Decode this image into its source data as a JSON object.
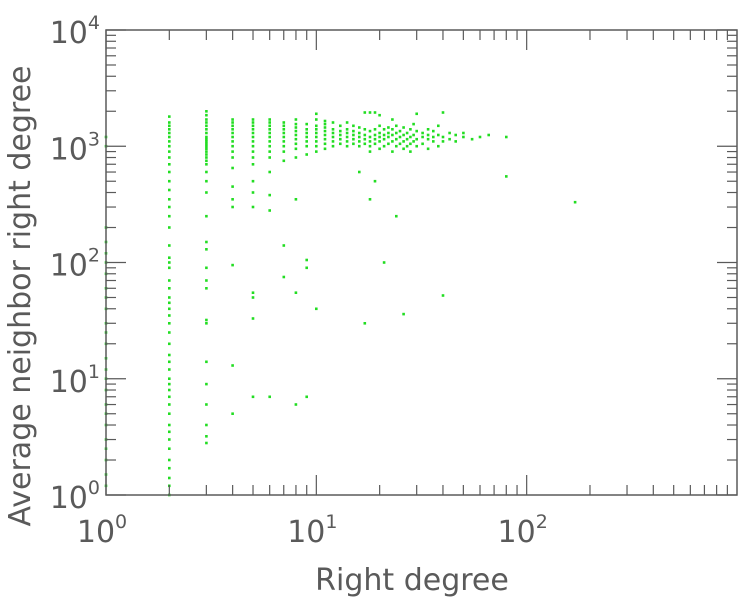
{
  "chart_data": {
    "type": "scatter",
    "xlabel": "Right degree",
    "ylabel": "Average neighbor right degree",
    "xscale": "log",
    "yscale": "log",
    "xlim": [
      1,
      1000
    ],
    "ylim": [
      1,
      10000
    ],
    "x_ticks": [
      {
        "base": "10",
        "exp": "0",
        "value": 1
      },
      {
        "base": "10",
        "exp": "1",
        "value": 10
      },
      {
        "base": "10",
        "exp": "2",
        "value": 100
      }
    ],
    "y_ticks": [
      {
        "base": "10",
        "exp": "0",
        "value": 1
      },
      {
        "base": "10",
        "exp": "1",
        "value": 10
      },
      {
        "base": "10",
        "exp": "2",
        "value": 100
      },
      {
        "base": "10",
        "exp": "3",
        "value": 1000
      },
      {
        "base": "10",
        "exp": "4",
        "value": 10000
      }
    ],
    "grid": false,
    "marker_color": "#22dd22",
    "axis_color": "#5a5a5a",
    "series": [
      {
        "values": [
          [
            1,
            1.2
          ],
          [
            1,
            1.5
          ],
          [
            1,
            2
          ],
          [
            1,
            2.5
          ],
          [
            1,
            3
          ],
          [
            1,
            4
          ],
          [
            1,
            5
          ],
          [
            1,
            6
          ],
          [
            1,
            8
          ],
          [
            1,
            10
          ],
          [
            1,
            12
          ],
          [
            1,
            15
          ],
          [
            1,
            20
          ],
          [
            1,
            25
          ],
          [
            1,
            30
          ],
          [
            1,
            40
          ],
          [
            1,
            50
          ],
          [
            1,
            60
          ],
          [
            1,
            80
          ],
          [
            1,
            100
          ],
          [
            1,
            120
          ],
          [
            1,
            150
          ],
          [
            1,
            200
          ],
          [
            1,
            1000
          ],
          [
            1,
            1200
          ],
          [
            2,
            1.0
          ],
          [
            2,
            1.2
          ],
          [
            2,
            1.4
          ],
          [
            2,
            1.7
          ],
          [
            2,
            2
          ],
          [
            2,
            2.5
          ],
          [
            2,
            3
          ],
          [
            2,
            3.5
          ],
          [
            2,
            4
          ],
          [
            2,
            5
          ],
          [
            2,
            6
          ],
          [
            2,
            7
          ],
          [
            2,
            8
          ],
          [
            2,
            9
          ],
          [
            2,
            10
          ],
          [
            2,
            12
          ],
          [
            2,
            14
          ],
          [
            2,
            16
          ],
          [
            2,
            20
          ],
          [
            2,
            25
          ],
          [
            2,
            30
          ],
          [
            2,
            35
          ],
          [
            2,
            40
          ],
          [
            2,
            45
          ],
          [
            2,
            50
          ],
          [
            2,
            60
          ],
          [
            2,
            70
          ],
          [
            2,
            90
          ],
          [
            2,
            100
          ],
          [
            2,
            110
          ],
          [
            2,
            140
          ],
          [
            2,
            200
          ],
          [
            2,
            250
          ],
          [
            2,
            300
          ],
          [
            2,
            350
          ],
          [
            2,
            420
          ],
          [
            2,
            500
          ],
          [
            2,
            600
          ],
          [
            2,
            700
          ],
          [
            2,
            800
          ],
          [
            2,
            900
          ],
          [
            2,
            1000
          ],
          [
            2,
            1100
          ],
          [
            2,
            1200
          ],
          [
            2,
            1300
          ],
          [
            2,
            1400
          ],
          [
            2,
            1500
          ],
          [
            2,
            1600
          ],
          [
            2,
            1800
          ],
          [
            3,
            2.8
          ],
          [
            3,
            3.2
          ],
          [
            3,
            4
          ],
          [
            3,
            6
          ],
          [
            3,
            9
          ],
          [
            3,
            14
          ],
          [
            3,
            30
          ],
          [
            3,
            32
          ],
          [
            3,
            60
          ],
          [
            3,
            70
          ],
          [
            3,
            90
          ],
          [
            3,
            130
          ],
          [
            3,
            150
          ],
          [
            3,
            250
          ],
          [
            3,
            400
          ],
          [
            3,
            500
          ],
          [
            3,
            600
          ],
          [
            3,
            700
          ],
          [
            3,
            750
          ],
          [
            3,
            800
          ],
          [
            3,
            850
          ],
          [
            3,
            900
          ],
          [
            3,
            950
          ],
          [
            3,
            1000
          ],
          [
            3,
            1050
          ],
          [
            3,
            1100
          ],
          [
            3,
            1150
          ],
          [
            3,
            1200
          ],
          [
            3,
            1300
          ],
          [
            3,
            1400
          ],
          [
            3,
            1500
          ],
          [
            3,
            1600
          ],
          [
            3,
            1700
          ],
          [
            3,
            1850
          ],
          [
            3,
            2000
          ],
          [
            4,
            5
          ],
          [
            4,
            13
          ],
          [
            4,
            95
          ],
          [
            4,
            300
          ],
          [
            4,
            350
          ],
          [
            4,
            450
          ],
          [
            4,
            650
          ],
          [
            4,
            800
          ],
          [
            4,
            900
          ],
          [
            4,
            1000
          ],
          [
            4,
            1100
          ],
          [
            4,
            1200
          ],
          [
            4,
            1300
          ],
          [
            4,
            1400
          ],
          [
            4,
            1500
          ],
          [
            4,
            1600
          ],
          [
            4,
            1700
          ],
          [
            5,
            7
          ],
          [
            5,
            33
          ],
          [
            5,
            50
          ],
          [
            5,
            55
          ],
          [
            5,
            300
          ],
          [
            5,
            400
          ],
          [
            5,
            500
          ],
          [
            5,
            700
          ],
          [
            5,
            800
          ],
          [
            5,
            900
          ],
          [
            5,
            1000
          ],
          [
            5,
            1100
          ],
          [
            5,
            1200
          ],
          [
            5,
            1300
          ],
          [
            5,
            1400
          ],
          [
            5,
            1500
          ],
          [
            5,
            1600
          ],
          [
            5,
            1700
          ],
          [
            6,
            7
          ],
          [
            6,
            280
          ],
          [
            6,
            380
          ],
          [
            6,
            600
          ],
          [
            6,
            800
          ],
          [
            6,
            900
          ],
          [
            6,
            1000
          ],
          [
            6,
            1100
          ],
          [
            6,
            1200
          ],
          [
            6,
            1300
          ],
          [
            6,
            1400
          ],
          [
            6,
            1500
          ],
          [
            6,
            1600
          ],
          [
            6,
            1700
          ],
          [
            7,
            75
          ],
          [
            7,
            140
          ],
          [
            7,
            750
          ],
          [
            7,
            900
          ],
          [
            7,
            1000
          ],
          [
            7,
            1100
          ],
          [
            7,
            1200
          ],
          [
            7,
            1300
          ],
          [
            7,
            1400
          ],
          [
            7,
            1500
          ],
          [
            7,
            1600
          ],
          [
            8,
            6
          ],
          [
            8,
            55
          ],
          [
            8,
            350
          ],
          [
            8,
            800
          ],
          [
            8,
            950
          ],
          [
            8,
            1050
          ],
          [
            8,
            1150
          ],
          [
            8,
            1250
          ],
          [
            8,
            1350
          ],
          [
            8,
            1450
          ],
          [
            8,
            1550
          ],
          [
            8,
            1700
          ],
          [
            9,
            7
          ],
          [
            9,
            90
          ],
          [
            9,
            105
          ],
          [
            9,
            850
          ],
          [
            9,
            1000
          ],
          [
            9,
            1100
          ],
          [
            9,
            1200
          ],
          [
            9,
            1300
          ],
          [
            9,
            1400
          ],
          [
            9,
            1550
          ],
          [
            10,
            40
          ],
          [
            10,
            900
          ],
          [
            10,
            1000
          ],
          [
            10,
            1100
          ],
          [
            10,
            1200
          ],
          [
            10,
            1300
          ],
          [
            10,
            1400
          ],
          [
            10,
            1500
          ],
          [
            10,
            1700
          ],
          [
            10,
            1900
          ],
          [
            11,
            950
          ],
          [
            11,
            1050
          ],
          [
            11,
            1150
          ],
          [
            11,
            1250
          ],
          [
            11,
            1350
          ],
          [
            11,
            1450
          ],
          [
            11,
            1550
          ],
          [
            11,
            1650
          ],
          [
            12,
            1000
          ],
          [
            12,
            1100
          ],
          [
            12,
            1200
          ],
          [
            12,
            1300
          ],
          [
            12,
            1400
          ],
          [
            12,
            1600
          ],
          [
            13,
            1050
          ],
          [
            13,
            1150
          ],
          [
            13,
            1250
          ],
          [
            13,
            1350
          ],
          [
            13,
            1500
          ],
          [
            14,
            1000
          ],
          [
            14,
            1100
          ],
          [
            14,
            1200
          ],
          [
            14,
            1300
          ],
          [
            14,
            1400
          ],
          [
            14,
            1600
          ],
          [
            15,
            1050
          ],
          [
            15,
            1150
          ],
          [
            15,
            1250
          ],
          [
            15,
            1350
          ],
          [
            15,
            1500
          ],
          [
            16,
            600
          ],
          [
            16,
            1000
          ],
          [
            16,
            1100
          ],
          [
            16,
            1200
          ],
          [
            16,
            1300
          ],
          [
            16,
            1450
          ],
          [
            17,
            30
          ],
          [
            17,
            1050
          ],
          [
            17,
            1150
          ],
          [
            17,
            1250
          ],
          [
            17,
            1400
          ],
          [
            17,
            1950
          ],
          [
            18,
            350
          ],
          [
            18,
            900
          ],
          [
            18,
            1000
          ],
          [
            18,
            1100
          ],
          [
            18,
            1200
          ],
          [
            18,
            1350
          ],
          [
            18,
            1950
          ],
          [
            19,
            500
          ],
          [
            19,
            1050
          ],
          [
            19,
            1150
          ],
          [
            19,
            1250
          ],
          [
            19,
            1400
          ],
          [
            19,
            1950
          ],
          [
            20,
            950
          ],
          [
            20,
            1100
          ],
          [
            20,
            1200
          ],
          [
            20,
            1300
          ],
          [
            20,
            1500
          ],
          [
            20,
            1850
          ],
          [
            21,
            100
          ],
          [
            21,
            1000
          ],
          [
            21,
            1150
          ],
          [
            21,
            1250
          ],
          [
            21,
            1400
          ],
          [
            22,
            1050
          ],
          [
            22,
            1200
          ],
          [
            22,
            1300
          ],
          [
            22,
            1450
          ],
          [
            23,
            900
          ],
          [
            23,
            1100
          ],
          [
            23,
            1250
          ],
          [
            23,
            1400
          ],
          [
            23,
            1700
          ],
          [
            24,
            250
          ],
          [
            24,
            1000
          ],
          [
            24,
            1150
          ],
          [
            24,
            1300
          ],
          [
            24,
            1500
          ],
          [
            25,
            1050
          ],
          [
            25,
            1200
          ],
          [
            25,
            1350
          ],
          [
            26,
            36
          ],
          [
            26,
            950
          ],
          [
            26,
            1100
          ],
          [
            26,
            1250
          ],
          [
            26,
            1450
          ],
          [
            27,
            1000
          ],
          [
            27,
            1150
          ],
          [
            27,
            1300
          ],
          [
            28,
            900
          ],
          [
            28,
            1050
          ],
          [
            28,
            1200
          ],
          [
            28,
            1400
          ],
          [
            29,
            1100
          ],
          [
            29,
            1250
          ],
          [
            29,
            1550
          ],
          [
            30,
            1000
          ],
          [
            30,
            1150
          ],
          [
            30,
            1350
          ],
          [
            30,
            1900
          ],
          [
            32,
            1050
          ],
          [
            32,
            1200
          ],
          [
            32,
            1300
          ],
          [
            34,
            950
          ],
          [
            34,
            1150
          ],
          [
            34,
            1250
          ],
          [
            34,
            1400
          ],
          [
            36,
            1100
          ],
          [
            36,
            1200
          ],
          [
            36,
            1350
          ],
          [
            38,
            1000
          ],
          [
            38,
            1250
          ],
          [
            38,
            1500
          ],
          [
            40,
            52
          ],
          [
            40,
            1100
          ],
          [
            40,
            1200
          ],
          [
            40,
            1950
          ],
          [
            43,
            1150
          ],
          [
            43,
            1300
          ],
          [
            46,
            1100
          ],
          [
            46,
            1250
          ],
          [
            50,
            1200
          ],
          [
            50,
            1300
          ],
          [
            55,
            1150
          ],
          [
            60,
            1200
          ],
          [
            66,
            1250
          ],
          [
            80,
            550
          ],
          [
            80,
            1200
          ],
          [
            170,
            330
          ]
        ]
      }
    ]
  }
}
